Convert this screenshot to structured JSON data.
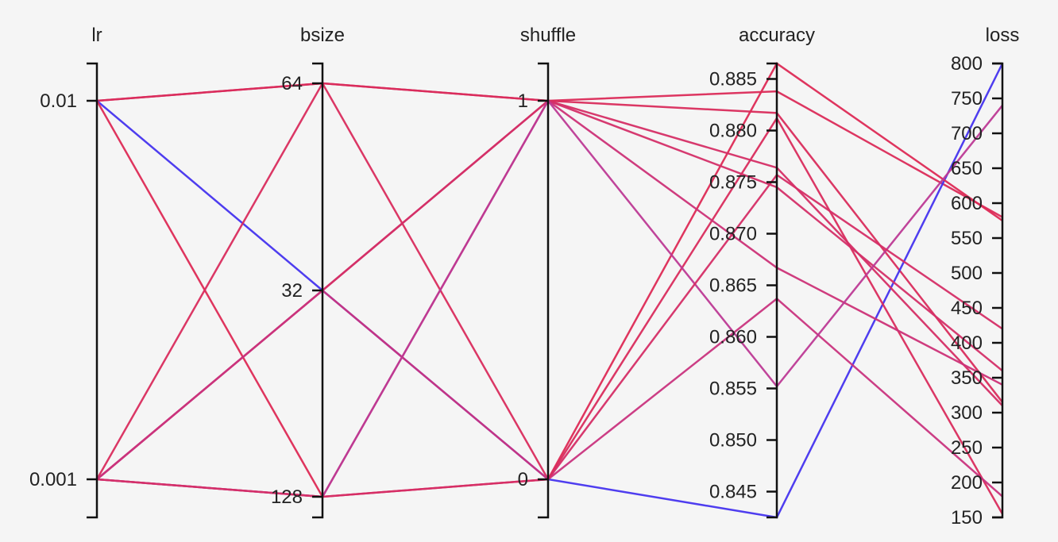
{
  "chart_data": {
    "type": "parallel-coordinates",
    "color_scale": {
      "low": "#4433ee",
      "mid": "#b040b0",
      "high": "#dd2a55"
    },
    "axes": [
      {
        "key": "lr",
        "label": "lr",
        "scale": "categorical",
        "categories": [
          "0.01",
          "0.001"
        ],
        "ticks": [
          {
            "value": "0.01",
            "label": "0.01"
          },
          {
            "value": "0.001",
            "label": "0.001"
          }
        ]
      },
      {
        "key": "bsize",
        "label": "bsize",
        "scale": "categorical",
        "categories": [
          "64",
          "32",
          "128"
        ],
        "ticks": [
          {
            "value": "64",
            "label": "64"
          },
          {
            "value": "32",
            "label": "32"
          },
          {
            "value": "128",
            "label": "128"
          }
        ]
      },
      {
        "key": "shuffle",
        "label": "shuffle",
        "scale": "categorical",
        "categories": [
          "1",
          "0"
        ],
        "ticks": [
          {
            "value": "1",
            "label": "1"
          },
          {
            "value": "0",
            "label": "0"
          }
        ]
      },
      {
        "key": "accuracy",
        "label": "accuracy",
        "scale": "linear",
        "domain": [
          0.8425,
          0.8865
        ],
        "ticks": [
          {
            "value": 0.885,
            "label": "0.885"
          },
          {
            "value": 0.88,
            "label": "0.880"
          },
          {
            "value": 0.875,
            "label": "0.875"
          },
          {
            "value": 0.87,
            "label": "0.870"
          },
          {
            "value": 0.865,
            "label": "0.865"
          },
          {
            "value": 0.86,
            "label": "0.860"
          },
          {
            "value": 0.855,
            "label": "0.855"
          },
          {
            "value": 0.85,
            "label": "0.850"
          },
          {
            "value": 0.845,
            "label": "0.845"
          }
        ]
      },
      {
        "key": "loss",
        "label": "loss",
        "scale": "linear",
        "domain": [
          150,
          800
        ],
        "ticks": [
          {
            "value": 800,
            "label": "800"
          },
          {
            "value": 750,
            "label": "750"
          },
          {
            "value": 700,
            "label": "700"
          },
          {
            "value": 650,
            "label": "650"
          },
          {
            "value": 600,
            "label": "600"
          },
          {
            "value": 550,
            "label": "550"
          },
          {
            "value": 500,
            "label": "500"
          },
          {
            "value": 450,
            "label": "450"
          },
          {
            "value": 400,
            "label": "400"
          },
          {
            "value": 350,
            "label": "350"
          },
          {
            "value": 300,
            "label": "300"
          },
          {
            "value": 250,
            "label": "250"
          },
          {
            "value": 200,
            "label": "200"
          },
          {
            "value": 150,
            "label": "150"
          }
        ]
      }
    ],
    "color_by": "accuracy",
    "rows": [
      {
        "lr": "0.01",
        "bsize": "64",
        "shuffle": "1",
        "accuracy": 0.8838,
        "loss": 580
      },
      {
        "lr": "0.01",
        "bsize": "64",
        "shuffle": "1",
        "accuracy": 0.8817,
        "loss": 315
      },
      {
        "lr": "0.01",
        "bsize": "32",
        "shuffle": "0",
        "accuracy": 0.8425,
        "loss": 800
      },
      {
        "lr": "0.01",
        "bsize": "128",
        "shuffle": "0",
        "accuracy": 0.8865,
        "loss": 575
      },
      {
        "lr": "0.001",
        "bsize": "64",
        "shuffle": "0",
        "accuracy": 0.8812,
        "loss": 155
      },
      {
        "lr": "0.001",
        "bsize": "32",
        "shuffle": "1",
        "accuracy": 0.8764,
        "loss": 310
      },
      {
        "lr": "0.001",
        "bsize": "32",
        "shuffle": "1",
        "accuracy": 0.8745,
        "loss": 360
      },
      {
        "lr": "0.001",
        "bsize": "32",
        "shuffle": "0",
        "accuracy": 0.8637,
        "loss": 180
      },
      {
        "lr": "0.001",
        "bsize": "128",
        "shuffle": "1",
        "accuracy": 0.8667,
        "loss": 340
      },
      {
        "lr": "0.001",
        "bsize": "128",
        "shuffle": "1",
        "accuracy": 0.8552,
        "loss": 740
      },
      {
        "lr": "0.001",
        "bsize": "128",
        "shuffle": "0",
        "accuracy": 0.8757,
        "loss": 420
      }
    ]
  }
}
